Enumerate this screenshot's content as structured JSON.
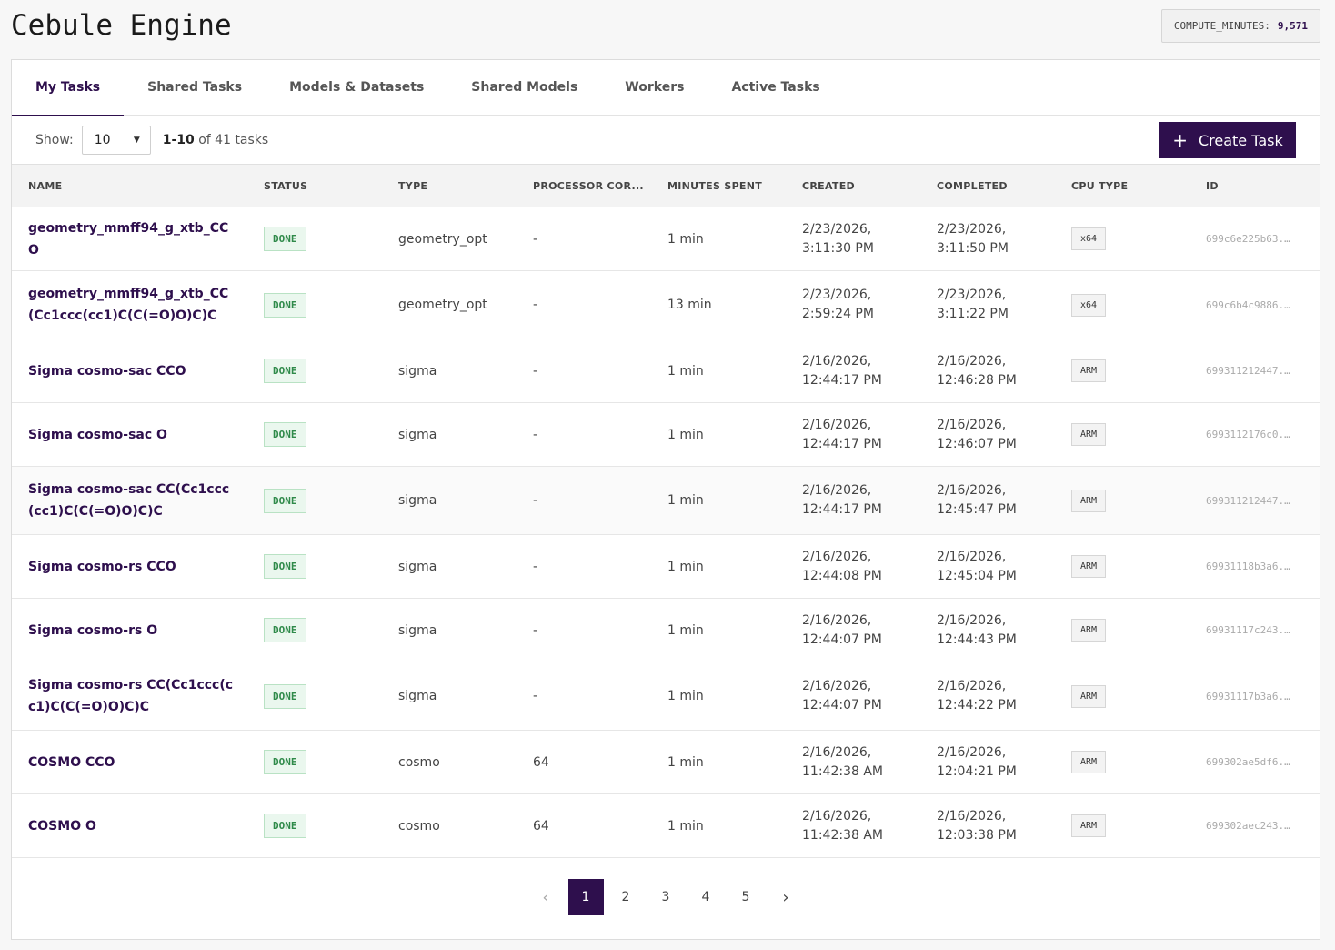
{
  "app": {
    "title": "Cebule Engine",
    "compute_label": "COMPUTE_MINUTES:",
    "compute_value": "9,571"
  },
  "tabs": [
    {
      "label": "My Tasks",
      "active": true
    },
    {
      "label": "Shared Tasks",
      "active": false
    },
    {
      "label": "Models & Datasets",
      "active": false
    },
    {
      "label": "Shared Models",
      "active": false
    },
    {
      "label": "Workers",
      "active": false
    },
    {
      "label": "Active Tasks",
      "active": false
    }
  ],
  "toolbar": {
    "show_label": "Show:",
    "page_size": "10",
    "range_bold": "1-10",
    "range_rest": " of 41 tasks",
    "create_label": "Create Task"
  },
  "table": {
    "headers": [
      "NAME",
      "STATUS",
      "TYPE",
      "PROCESSOR COR...",
      "MINUTES SPENT",
      "CREATED",
      "COMPLETED",
      "CPU TYPE",
      "ID"
    ],
    "rows": [
      {
        "name": "geometry_mmff94_g_xtb_CCO",
        "status": "DONE",
        "type": "geometry_opt",
        "proc": "-",
        "minutes": "1 min",
        "created_date": "2/23/2026,",
        "created_time": "3:11:30 PM",
        "completed_date": "2/23/2026,",
        "completed_time": "3:11:50 PM",
        "cpu": "x64",
        "id": "699c6e225b63..."
      },
      {
        "name": "geometry_mmff94_g_xtb_CC(Cc1ccc(cc1)C(C(=O)O)C)C",
        "status": "DONE",
        "type": "geometry_opt",
        "proc": "-",
        "minutes": "13 min",
        "created_date": "2/23/2026,",
        "created_time": "2:59:24 PM",
        "completed_date": "2/23/2026,",
        "completed_time": "3:11:22 PM",
        "cpu": "x64",
        "id": "699c6b4c9886..."
      },
      {
        "name": "Sigma cosmo-sac CCO",
        "status": "DONE",
        "type": "sigma",
        "proc": "-",
        "minutes": "1 min",
        "created_date": "2/16/2026,",
        "created_time": "12:44:17 PM",
        "completed_date": "2/16/2026,",
        "completed_time": "12:46:28 PM",
        "cpu": "ARM",
        "id": "699311212447..."
      },
      {
        "name": "Sigma cosmo-sac O",
        "status": "DONE",
        "type": "sigma",
        "proc": "-",
        "minutes": "1 min",
        "created_date": "2/16/2026,",
        "created_time": "12:44:17 PM",
        "completed_date": "2/16/2026,",
        "completed_time": "12:46:07 PM",
        "cpu": "ARM",
        "id": "6993112176c0..."
      },
      {
        "name": "Sigma cosmo-sac CC(Cc1ccc(cc1)C(C(=O)O)C)C",
        "status": "DONE",
        "type": "sigma",
        "proc": "-",
        "minutes": "1 min",
        "created_date": "2/16/2026,",
        "created_time": "12:44:17 PM",
        "completed_date": "2/16/2026,",
        "completed_time": "12:45:47 PM",
        "cpu": "ARM",
        "id": "699311212447..."
      },
      {
        "name": "Sigma cosmo-rs CCO",
        "status": "DONE",
        "type": "sigma",
        "proc": "-",
        "minutes": "1 min",
        "created_date": "2/16/2026,",
        "created_time": "12:44:08 PM",
        "completed_date": "2/16/2026,",
        "completed_time": "12:45:04 PM",
        "cpu": "ARM",
        "id": "69931118b3a6..."
      },
      {
        "name": "Sigma cosmo-rs O",
        "status": "DONE",
        "type": "sigma",
        "proc": "-",
        "minutes": "1 min",
        "created_date": "2/16/2026,",
        "created_time": "12:44:07 PM",
        "completed_date": "2/16/2026,",
        "completed_time": "12:44:43 PM",
        "cpu": "ARM",
        "id": "69931117c243..."
      },
      {
        "name": "Sigma cosmo-rs CC(Cc1ccc(cc1)C(C(=O)O)C)C",
        "status": "DONE",
        "type": "sigma",
        "proc": "-",
        "minutes": "1 min",
        "created_date": "2/16/2026,",
        "created_time": "12:44:07 PM",
        "completed_date": "2/16/2026,",
        "completed_time": "12:44:22 PM",
        "cpu": "ARM",
        "id": "69931117b3a6..."
      },
      {
        "name": "COSMO CCO",
        "status": "DONE",
        "type": "cosmo",
        "proc": "64",
        "minutes": "1 min",
        "created_date": "2/16/2026,",
        "created_time": "11:42:38 AM",
        "completed_date": "2/16/2026,",
        "completed_time": "12:04:21 PM",
        "cpu": "ARM",
        "id": "699302ae5df6..."
      },
      {
        "name": "COSMO O",
        "status": "DONE",
        "type": "cosmo",
        "proc": "64",
        "minutes": "1 min",
        "created_date": "2/16/2026,",
        "created_time": "11:42:38 AM",
        "completed_date": "2/16/2026,",
        "completed_time": "12:03:38 PM",
        "cpu": "ARM",
        "id": "699302aec243..."
      }
    ]
  },
  "pagination": {
    "prev_icon": "chevron-left-icon",
    "next_icon": "chevron-right-icon",
    "pages": [
      "1",
      "2",
      "3",
      "4",
      "5"
    ],
    "current": "1"
  }
}
